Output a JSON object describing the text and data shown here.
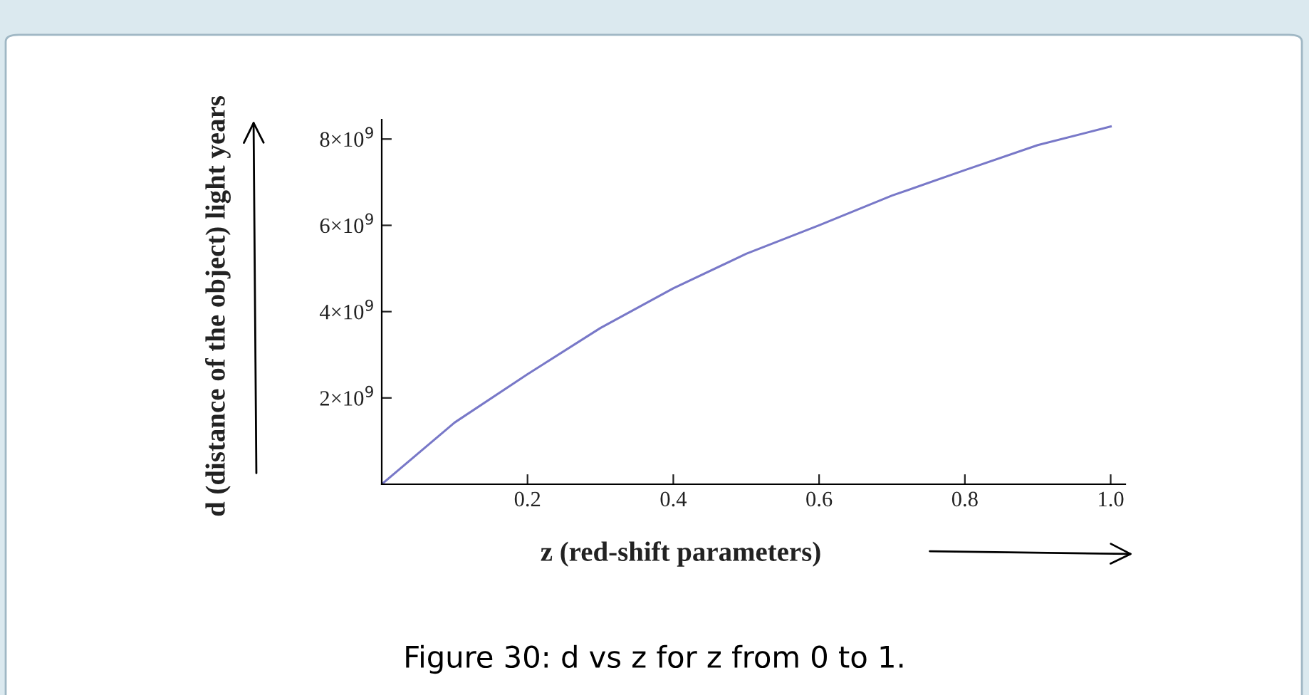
{
  "chart_data": {
    "type": "line",
    "xlabel": "z (red-shift parameters)",
    "ylabel": "d (distance of the object) light years",
    "x": [
      0,
      0.1,
      0.2,
      0.3,
      0.4,
      0.5,
      0.6,
      0.7,
      0.8,
      0.9,
      1.0
    ],
    "series": [
      {
        "color": "#7878c8",
        "values": [
          0,
          1430000000.0,
          2550000000.0,
          3620000000.0,
          4540000000.0,
          5340000000.0,
          6000000000.0,
          6690000000.0,
          7280000000.0,
          7860000000.0,
          8290000000.0
        ]
      }
    ],
    "xlim": [
      0,
      1.02
    ],
    "ylim": [
      0,
      8450000000.0
    ],
    "xticks": [
      0.2,
      0.4,
      0.6,
      0.8,
      {
        "value": 1.0,
        "label": "1.0"
      }
    ],
    "yticks": [
      {
        "value": 2000000000.0,
        "label": "2×10$^{9}$"
      },
      {
        "value": 4000000000.0,
        "label": "4×10$^{9}$"
      },
      {
        "value": 6000000000.0,
        "label": "6×10$^{9}$"
      },
      {
        "value": 8000000000.0,
        "label": "8×10$^{9}$"
      }
    ],
    "grid": false,
    "legend": false,
    "annotations": [
      "Figure 30: d vs z for z from 0 to 1."
    ]
  }
}
